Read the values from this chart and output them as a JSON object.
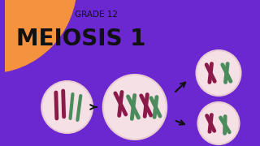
{
  "bg_color": "#6b28d0",
  "orange_color": "#f5923e",
  "grade_text": "GRADE 12",
  "title_text": "MEIOSIS 1",
  "cell_color": "#f5e0e5",
  "cell_edge_color": "#e8ccd2",
  "purple": "#8B1A4A",
  "green": "#4a8c5c",
  "arrow_color": "#111111"
}
